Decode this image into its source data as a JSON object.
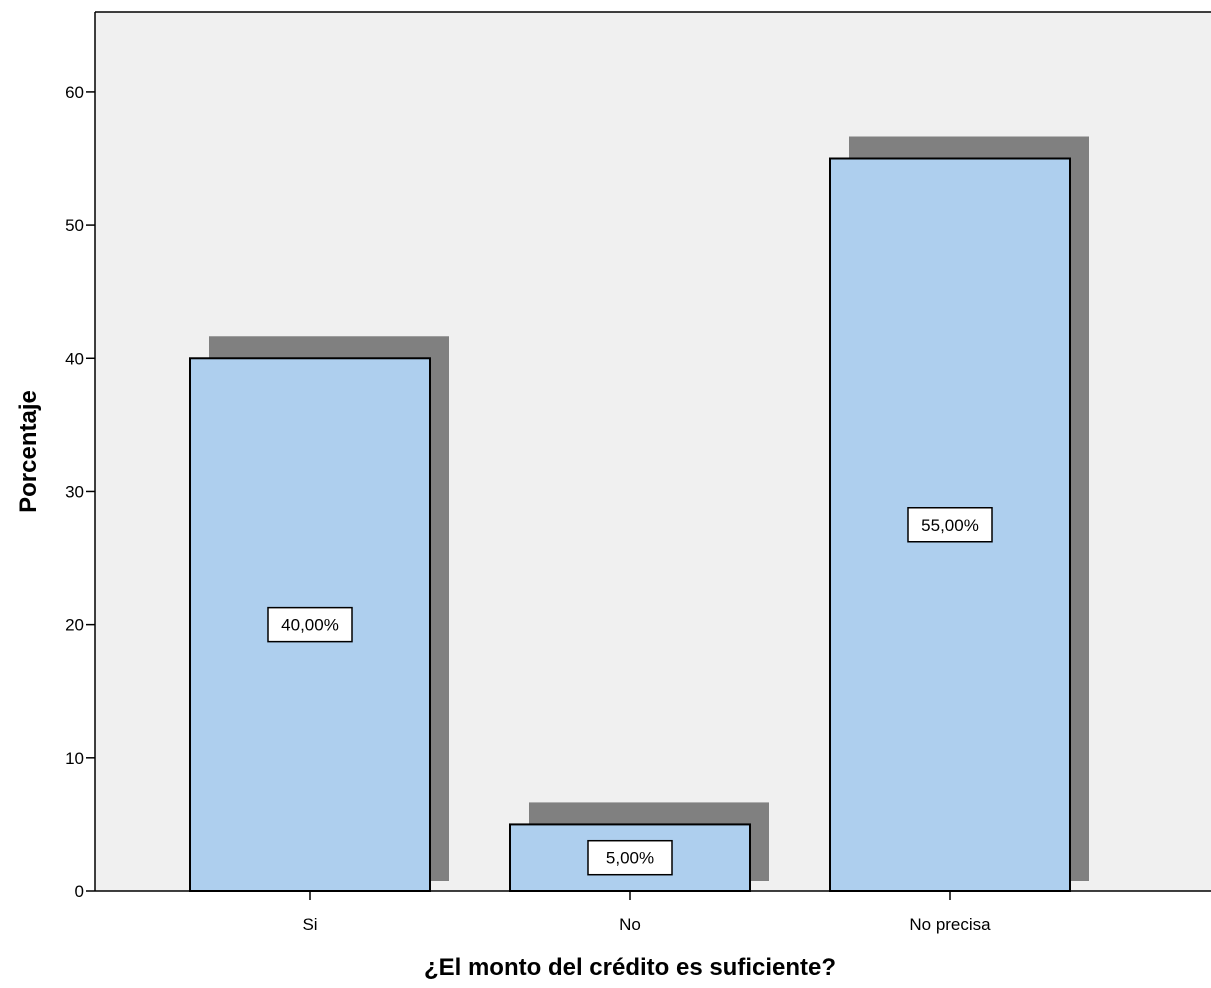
{
  "chart_data": {
    "type": "bar",
    "categories": [
      "Si",
      "No",
      "No precisa"
    ],
    "values": [
      40,
      5,
      55
    ],
    "data_labels": [
      "40,00%",
      "5,00%",
      "55,00%"
    ],
    "xlabel": "¿El monto del crédito es suficiente?",
    "ylabel": "Porcentaje",
    "ylim": [
      0,
      66
    ],
    "yticks": [
      0,
      10,
      20,
      30,
      40,
      50,
      60
    ],
    "grid": false,
    "bar_shadow": true
  },
  "colors": {
    "plot_background": "#f0f0f0",
    "bar_fill": "#aecfee",
    "bar_edge": "#000000",
    "shadow": "#808080",
    "label_box": "#ffffff"
  }
}
